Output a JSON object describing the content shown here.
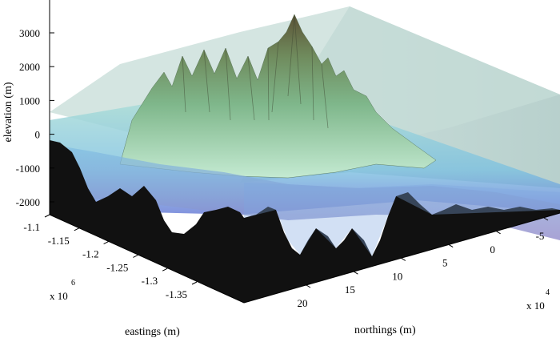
{
  "chart_data": {
    "type": "surface3d",
    "zlabel": "elevation (m)",
    "xlabel": "eastings (m)",
    "ylabel": "northings (m)",
    "z_ticks": [
      3000,
      2000,
      1000,
      0,
      -1000,
      -2000
    ],
    "zlim": [
      -2500,
      3800
    ],
    "x_ticks": [
      -1.1,
      -1.15,
      -1.2,
      -1.25,
      -1.3,
      -1.35
    ],
    "x_exponent": "x 10",
    "x_exponent_power": "6",
    "y_ticks": [
      20,
      15,
      10,
      5,
      0,
      -5
    ],
    "y_exponent": "x 10",
    "y_exponent_power": "4",
    "sea_level_plane": 0,
    "peak_elevation": 3400,
    "colors": {
      "land_high": "#6e6a48",
      "land_mid": "#7fae86",
      "land_low": "#b9e3c7",
      "water": "#9fd3d2",
      "seafloor": "#6b8ad6",
      "crust": "#111111",
      "ice_box": "#bcd5d1"
    }
  }
}
